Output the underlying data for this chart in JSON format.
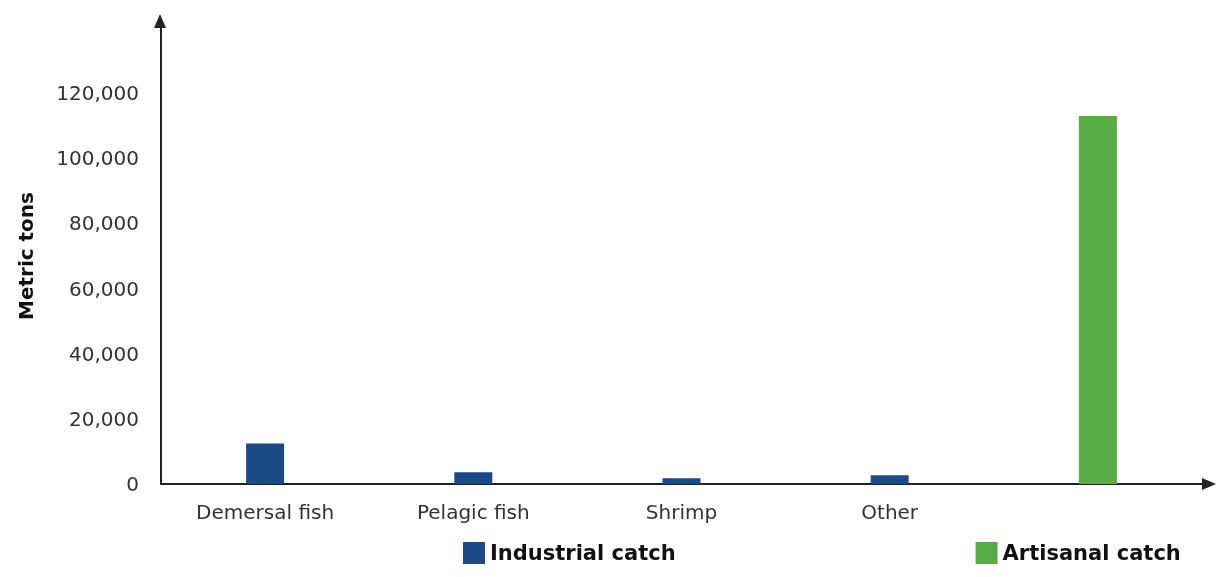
{
  "chart_data": {
    "type": "bar",
    "ylabel": "Metric tons",
    "categories": [
      "Demersal fish",
      "Pelagic fish",
      "Shrimp",
      "Other",
      null
    ],
    "series": [
      {
        "name": "Industrial catch",
        "color": "#1c4a87",
        "values": [
          12400,
          3600,
          1800,
          2700,
          null
        ]
      },
      {
        "name": "Artisanal catch",
        "color": "#5aac46",
        "values": [
          null,
          null,
          null,
          null,
          113000
        ]
      }
    ],
    "ylim": [
      0,
      140000
    ],
    "yticks": [
      0,
      {
        "value": 20000,
        "label": "20,000"
      },
      {
        "value": 40000,
        "label": "40,000"
      },
      {
        "value": 60000,
        "label": "60,000"
      },
      {
        "value": 80000,
        "label": "80,000"
      },
      {
        "value": 100000,
        "label": "100,000"
      },
      {
        "value": 120000,
        "label": "120,000"
      }
    ],
    "grid": false,
    "legend": "bottom"
  }
}
